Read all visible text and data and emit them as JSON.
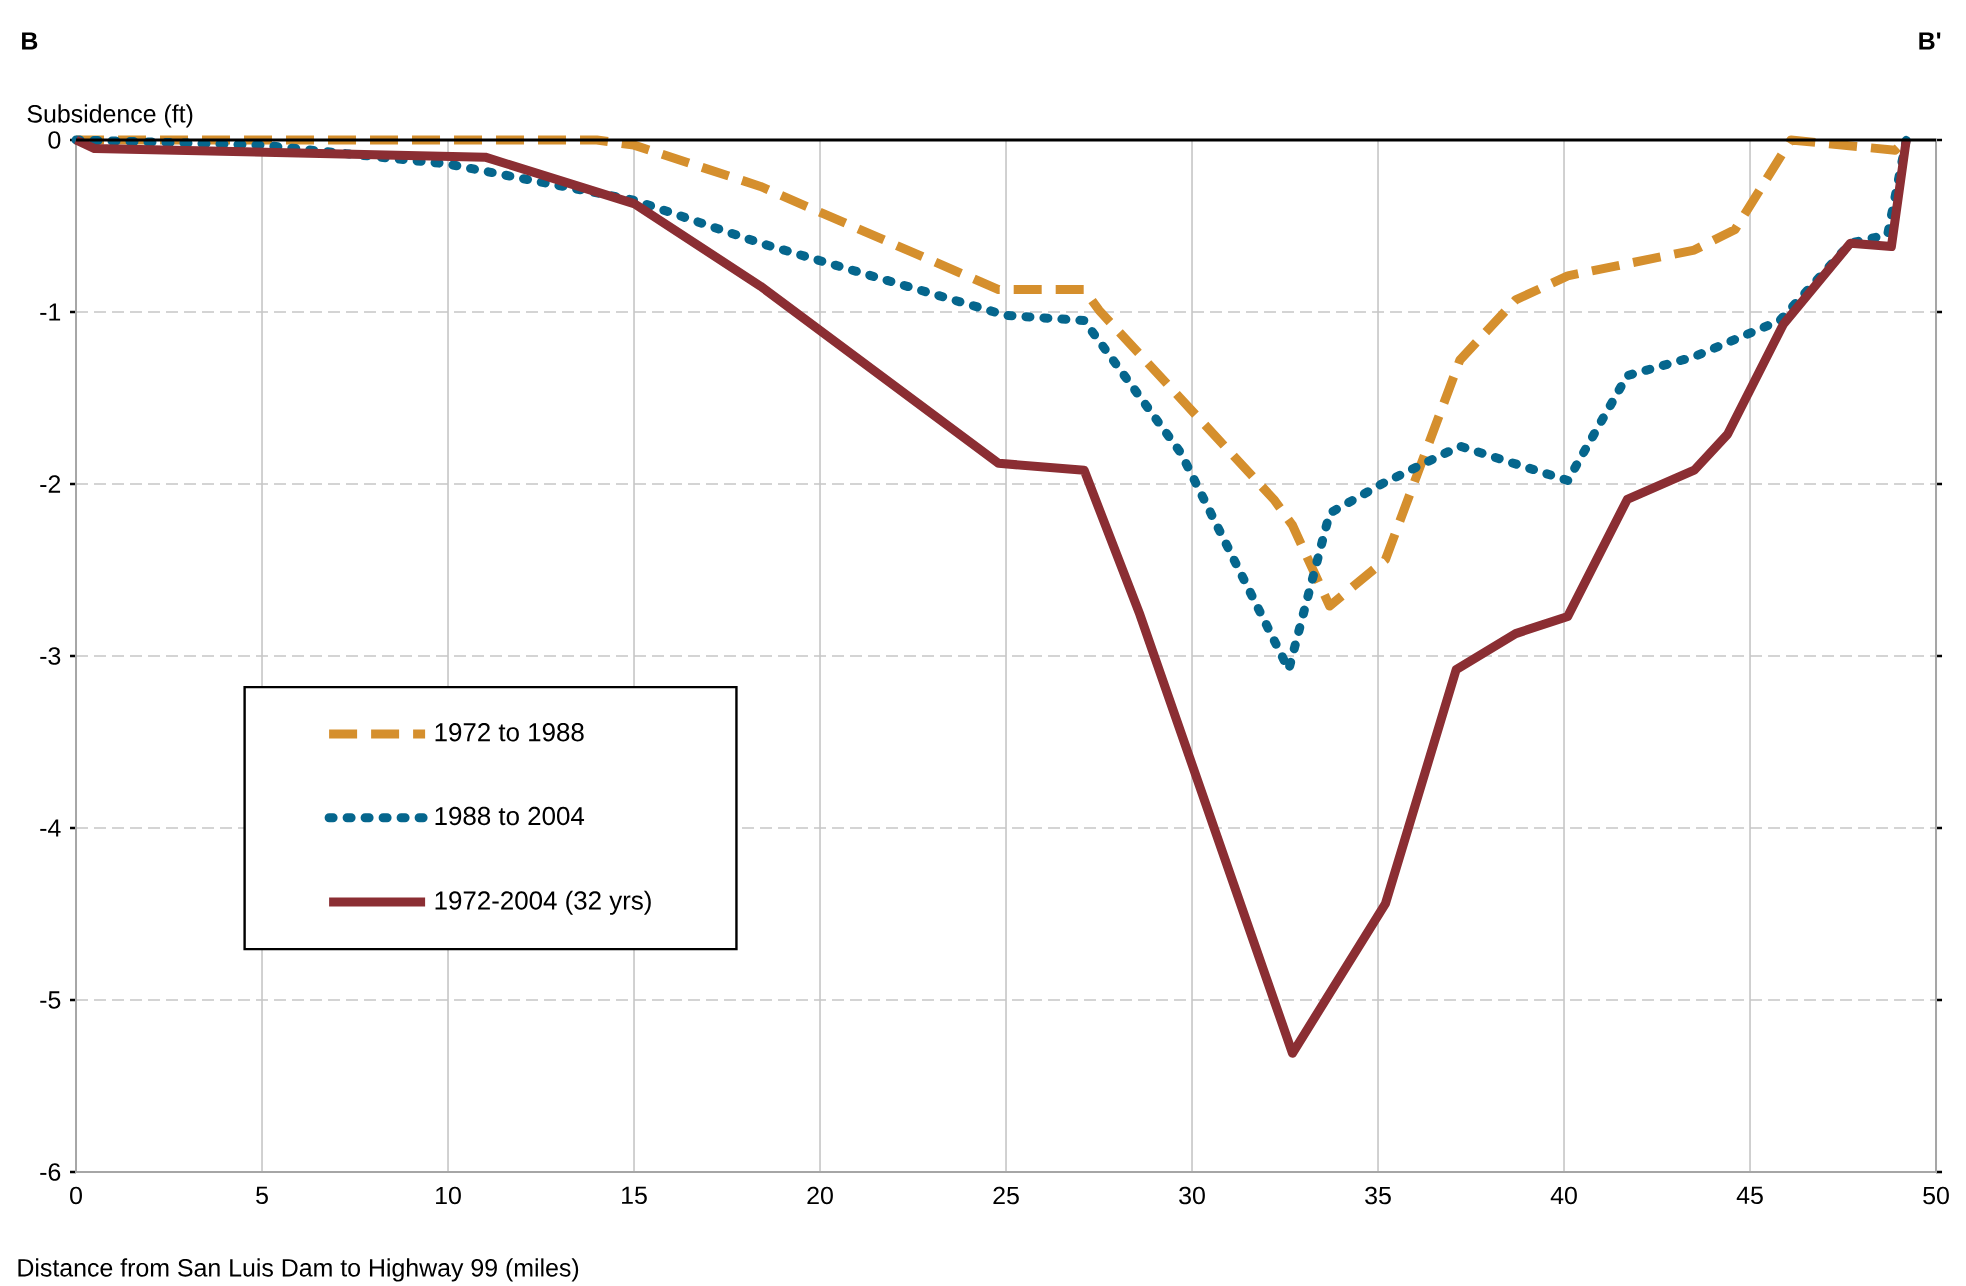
{
  "chart_data": {
    "type": "line",
    "xlabel": "Distance from San Luis Dam to Highway 99 (miles)",
    "ylabel": "Subsidence (ft)",
    "annotations": [
      "B",
      "B'"
    ],
    "xlim": [
      0,
      50
    ],
    "xticks": [
      0,
      5,
      10,
      15,
      20,
      25,
      30,
      35,
      40,
      45,
      50
    ],
    "ylim": [
      -6,
      0
    ],
    "yticks": [
      -6,
      -5,
      -4,
      -3,
      -2,
      -1,
      0
    ],
    "grid": true,
    "legend": "bottom left",
    "marker": "none",
    "series": [
      {
        "name": "1972 to 1988",
        "color": "#d58f2d",
        "line_style": "dashed",
        "x": [
          0,
          5,
          10,
          14,
          15,
          18.4,
          24.8,
          27.1,
          27.5,
          32.2,
          32.7,
          33.7,
          35.2,
          37.2,
          38.7,
          40.1,
          43.5,
          44.6,
          46.1,
          48.9,
          49.2
        ],
        "values": [
          0,
          0,
          0,
          0,
          -0.03,
          -0.27,
          -0.87,
          -0.87,
          -0.99,
          -2.09,
          -2.24,
          -2.71,
          -2.44,
          -1.28,
          -0.93,
          -0.79,
          -0.64,
          -0.52,
          0,
          -0.06,
          0
        ]
      },
      {
        "name": "1988 to 2004",
        "color": "#05668d",
        "line_style": "dotted",
        "x": [
          0,
          5,
          10,
          15,
          18.4,
          25,
          27.1,
          29.7,
          32.6,
          33.7,
          35.1,
          37.2,
          40.1,
          41.7,
          43.5,
          45.8,
          47.7,
          48.7,
          49.2
        ],
        "values": [
          0,
          -0.03,
          -0.14,
          -0.35,
          -0.6,
          -1.02,
          -1.05,
          -1.82,
          -3.08,
          -2.17,
          -2.0,
          -1.78,
          -1.98,
          -1.37,
          -1.26,
          -1.05,
          -0.6,
          -0.55,
          0
        ]
      },
      {
        "name": "1972-2004 (32 yrs)",
        "color": "#8b2e33",
        "line_style": "solid",
        "x": [
          0,
          0.5,
          11,
          15,
          18.4,
          24.8,
          27.1,
          28.6,
          32.7,
          35.2,
          37.1,
          38.7,
          40.1,
          41.7,
          43.5,
          44.4,
          45.9,
          47.7,
          48.8,
          49.2
        ],
        "values": [
          0,
          -0.05,
          -0.1,
          -0.37,
          -0.85,
          -1.88,
          -1.92,
          -2.76,
          -5.31,
          -4.44,
          -3.08,
          -2.87,
          -2.77,
          -2.09,
          -1.92,
          -1.71,
          -1.07,
          -0.6,
          -0.62,
          0
        ]
      }
    ]
  }
}
